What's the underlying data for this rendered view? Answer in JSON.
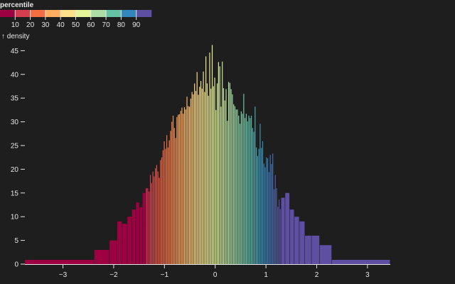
{
  "chart_data": {
    "type": "bar",
    "legend": {
      "title": "percentile",
      "ticks": [
        "10",
        "20",
        "30",
        "40",
        "50",
        "60",
        "70",
        "80",
        "90"
      ],
      "colors": [
        "#9e0142",
        "#d53e4f",
        "#f46d43",
        "#fdae61",
        "#fee08b",
        "#e6f598",
        "#abdda4",
        "#66c2a5",
        "#3288bd",
        "#5e4fa2"
      ]
    },
    "ylabel": "↑ density",
    "xlim": [
      -3.75,
      3.45
    ],
    "ylim": [
      0,
      47
    ],
    "x_ticks": [
      {
        "value": -3,
        "label": "−3"
      },
      {
        "value": -2,
        "label": "−2"
      },
      {
        "value": -1,
        "label": "−1"
      },
      {
        "value": 0,
        "label": "0"
      },
      {
        "value": 1,
        "label": "1"
      },
      {
        "value": 2,
        "label": "2"
      },
      {
        "value": 3,
        "label": "3"
      }
    ],
    "y_ticks": [
      {
        "value": 0,
        "label": "0"
      },
      {
        "value": 5,
        "label": "5"
      },
      {
        "value": 10,
        "label": "10"
      },
      {
        "value": 15,
        "label": "15"
      },
      {
        "value": 20,
        "label": "20"
      },
      {
        "value": 25,
        "label": "25"
      },
      {
        "value": 30,
        "label": "30"
      },
      {
        "value": 35,
        "label": "35"
      },
      {
        "value": 40,
        "label": "40"
      },
      {
        "value": 45,
        "label": "45"
      }
    ],
    "outer_bins": {
      "left": [
        {
          "x0": -3.75,
          "x1": -2.38,
          "y": 0.9,
          "p": 0
        },
        {
          "x0": -2.38,
          "x1": -2.08,
          "y": 3.0,
          "p": 0
        },
        {
          "x0": -2.08,
          "x1": -1.93,
          "y": 5.0,
          "p": 0
        },
        {
          "x0": -1.93,
          "x1": -1.83,
          "y": 9.0,
          "p": 0
        },
        {
          "x0": -1.83,
          "x1": -1.73,
          "y": 8.5,
          "p": 0
        },
        {
          "x0": -1.73,
          "x1": -1.64,
          "y": 10.0,
          "p": 0
        },
        {
          "x0": -1.64,
          "x1": -1.56,
          "y": 11.5,
          "p": 0
        },
        {
          "x0": -1.56,
          "x1": -1.49,
          "y": 13.0,
          "p": 0
        },
        {
          "x0": -1.49,
          "x1": -1.43,
          "y": 12.0,
          "p": 0
        },
        {
          "x0": -1.43,
          "x1": -1.37,
          "y": 15.0,
          "p": 0
        },
        {
          "x0": -1.37,
          "x1": -1.31,
          "y": 16.0,
          "p": 0.5
        }
      ],
      "right": [
        {
          "x0": 1.3,
          "x1": 1.38,
          "y": 14.0,
          "p": 9
        },
        {
          "x0": 1.38,
          "x1": 1.47,
          "y": 15.0,
          "p": 9
        },
        {
          "x0": 1.47,
          "x1": 1.56,
          "y": 11.5,
          "p": 9
        },
        {
          "x0": 1.56,
          "x1": 1.66,
          "y": 10.0,
          "p": 9
        },
        {
          "x0": 1.66,
          "x1": 1.77,
          "y": 9.0,
          "p": 9
        },
        {
          "x0": 1.77,
          "x1": 1.9,
          "y": 6.0,
          "p": 9
        },
        {
          "x0": 1.9,
          "x1": 2.06,
          "y": 6.0,
          "p": 9
        },
        {
          "x0": 2.06,
          "x1": 2.3,
          "y": 4.0,
          "p": 9
        },
        {
          "x0": 2.3,
          "x1": 3.45,
          "y": 0.9,
          "p": 9
        }
      ]
    },
    "inner_bins": {
      "x_start": -1.31,
      "x_end": 1.3,
      "heights": [
        15.3,
        18.8,
        17.1,
        19.5,
        18.5,
        20.2,
        20.9,
        19.5,
        18.2,
        21.9,
        22.5,
        24.0,
        25.9,
        24.3,
        27.2,
        24.6,
        26.1,
        28.1,
        30.0,
        31.3,
        28.7,
        26.6,
        31.0,
        31.5,
        31.6,
        32.3,
        33.0,
        31.7,
        33.1,
        32.6,
        35.3,
        33.3,
        33.2,
        34.9,
        36.3,
        35.8,
        38.1,
        36.5,
        40.5,
        35.7,
        37.4,
        38.6,
        37.0,
        40.6,
        36.3,
        43.8,
        38.1,
        35.5,
        44.6,
        37.0,
        46.2,
        37.5,
        39.3,
        32.5,
        38.1,
        42.6,
        41.7,
        33.2,
        42.7,
        37.1,
        34.5,
        36.9,
        30.2,
        38.4,
        38.2,
        36.9,
        35.8,
        33.7,
        33.3,
        32.6,
        32.6,
        31.3,
        29.6,
        32.2,
        31.7,
        35.9,
        30.8,
        31.7,
        30.1,
        31.3,
        30.8,
        31.3,
        28.7,
        27.9,
        33.2,
        24.6,
        22.8,
        24.3,
        29.6,
        24.5,
        25.9,
        21.2,
        20.4,
        22.5,
        22.3,
        19.4,
        23.0,
        21.1,
        23.3,
        15.8,
        18.8,
        16.0,
        12.1,
        13.6,
        11.6
      ]
    }
  }
}
